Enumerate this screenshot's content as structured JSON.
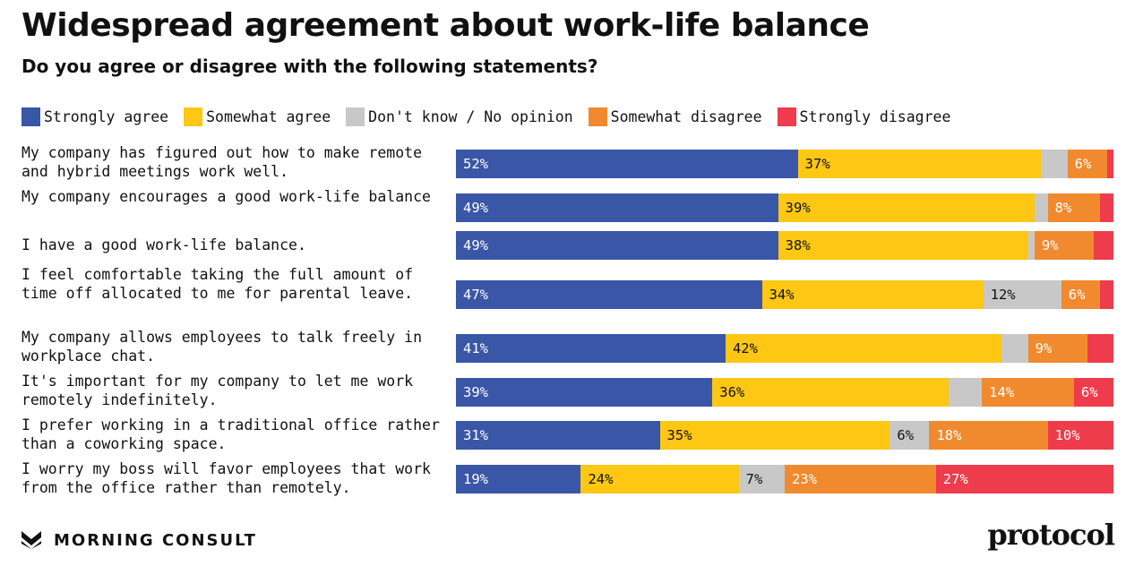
{
  "header": {
    "title": "Widespread agreement about work-life balance",
    "subtitle": "Do you agree or disagree with the following statements?"
  },
  "footer": {
    "brand": "MORNING CONSULT",
    "brand_icon": "morning-consult-logo",
    "publisher": "protocol"
  },
  "chart_data": {
    "type": "bar",
    "orientation": "horizontal",
    "stacked": true,
    "normalized": true,
    "legend_position": "top",
    "colors": [
      "#3a56a7",
      "#fdc713",
      "#c8c8c8",
      "#f18a2e",
      "#ee3c4c"
    ],
    "label_colors": [
      "#ffffff",
      "#111111",
      "#111111",
      "#ffffff",
      "#ffffff"
    ],
    "categories": [
      "My company has figured out how to make remote and hybrid meetings work well.",
      "My company encourages a good work-life balance",
      "I have a good work-life balance.",
      "I feel comfortable taking the full amount of time off allocated to me for parental leave.",
      "My company allows employees to talk freely in workplace chat.",
      "It's important for my company to let me work remotely indefinitely.",
      "I prefer working in a traditional office rather than a coworking space.",
      "I worry my boss will favor employees that work from the office rather than remotely."
    ],
    "series": [
      {
        "name": "Strongly agree",
        "values": [
          52,
          49,
          49,
          47,
          41,
          39,
          31,
          19
        ],
        "labels": [
          "52%",
          "49%",
          "49%",
          "47%",
          "41%",
          "39%",
          "31%",
          "19%"
        ]
      },
      {
        "name": "Somewhat agree",
        "values": [
          37,
          39,
          38,
          34,
          42,
          36,
          35,
          24
        ],
        "labels": [
          "37%",
          "39%",
          "38%",
          "34%",
          "42%",
          "36%",
          "35%",
          "24%"
        ]
      },
      {
        "name": "Don't know / No opinion",
        "values": [
          4,
          2,
          1,
          12,
          4,
          5,
          6,
          7
        ],
        "labels": [
          "",
          "",
          "",
          "12%",
          "",
          "",
          "6%",
          "7%"
        ]
      },
      {
        "name": "Somewhat disagree",
        "values": [
          6,
          8,
          9,
          6,
          9,
          14,
          18,
          23
        ],
        "labels": [
          "6%",
          "8%",
          "9%",
          "6%",
          "9%",
          "14%",
          "18%",
          "23%"
        ]
      },
      {
        "name": "Strongly disagree",
        "values": [
          1,
          2,
          3,
          2,
          4,
          6,
          10,
          27
        ],
        "labels": [
          "",
          "",
          "",
          "",
          "",
          "6%",
          "10%",
          "27%"
        ]
      }
    ]
  }
}
